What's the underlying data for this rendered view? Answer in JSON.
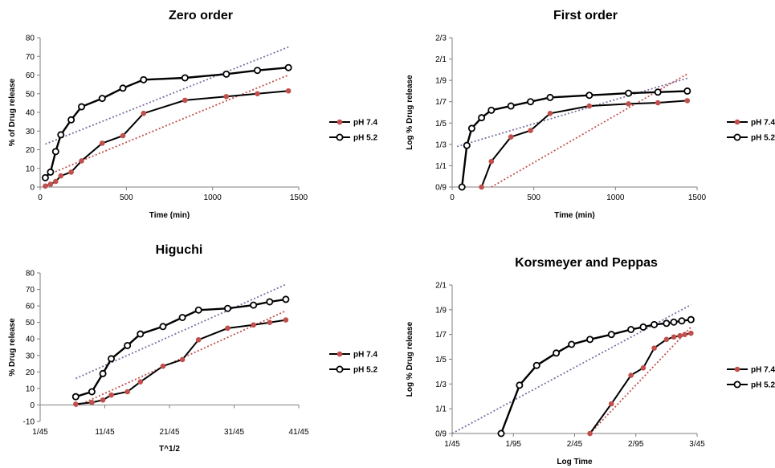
{
  "chart_data": [
    {
      "type": "line",
      "title": "Zero order",
      "xlabel": "Time (min)",
      "ylabel": "% of Drug release",
      "xticks": [
        "0",
        "500",
        "1000",
        "1500"
      ],
      "yticks": [
        "0",
        "10",
        "20",
        "30",
        "40",
        "50",
        "60",
        "70",
        "80"
      ],
      "xlim": [
        0,
        1500
      ],
      "ylim": [
        0,
        80
      ],
      "grid": false,
      "legend": "right",
      "series": [
        {
          "name": "pH 7.4",
          "color": "#c0504d",
          "x": [
            30,
            60,
            90,
            120,
            180,
            240,
            360,
            480,
            600,
            840,
            1080,
            1260,
            1440
          ],
          "y": [
            0.5,
            1.5,
            3,
            6,
            8,
            14,
            23.5,
            27.5,
            39.5,
            46.5,
            48.5,
            50,
            51.5
          ]
        },
        {
          "name": "pH 5.2",
          "color": "#000000",
          "x": [
            30,
            60,
            90,
            120,
            180,
            240,
            360,
            480,
            600,
            840,
            1080,
            1260,
            1440
          ],
          "y": [
            5,
            8,
            19,
            28,
            36,
            43,
            47.5,
            53,
            57.5,
            58.5,
            60.5,
            62.5,
            64
          ]
        }
      ],
      "trendlines": [
        {
          "color": "#c0504d",
          "x": [
            30,
            1440
          ],
          "y": [
            6,
            60
          ]
        },
        {
          "color": "#7f6f9f",
          "x": [
            30,
            1440
          ],
          "y": [
            23,
            75
          ]
        }
      ]
    },
    {
      "type": "line",
      "title": "First order",
      "xlabel": "Time (min)",
      "ylabel": "Log % Drug release",
      "xticks": [
        "0",
        "500",
        "1000",
        "1500"
      ],
      "yticks": [
        "0/9",
        "1/1",
        "1/3",
        "1/5",
        "1/7",
        "1/9",
        "2/1",
        "2/3"
      ],
      "xlim": [
        0,
        1500
      ],
      "ylim": [
        0,
        7
      ],
      "grid": false,
      "legend": "right",
      "series": [
        {
          "name": "pH 7.4",
          "color": "#c0504d",
          "x": [
            180,
            240,
            360,
            480,
            600,
            840,
            1080,
            1260,
            1440
          ],
          "y": [
            0,
            1.2,
            2.35,
            2.65,
            3.45,
            3.8,
            3.9,
            3.95,
            4.05
          ]
        },
        {
          "name": "pH 5.2",
          "color": "#000000",
          "x": [
            60,
            90,
            120,
            180,
            240,
            360,
            480,
            600,
            840,
            1080,
            1260,
            1440
          ],
          "y": [
            0,
            1.95,
            2.75,
            3.25,
            3.6,
            3.8,
            4.0,
            4.2,
            4.3,
            4.4,
            4.45,
            4.5
          ]
        }
      ],
      "trendlines": [
        {
          "color": "#c0504d",
          "x": [
            240,
            1440
          ],
          "y": [
            0,
            5.3
          ]
        },
        {
          "color": "#7f6f9f",
          "x": [
            30,
            1440
          ],
          "y": [
            1.9,
            5.1
          ]
        }
      ]
    },
    {
      "type": "line",
      "title": "Higuchi",
      "xlabel": "T^1/2",
      "ylabel": "% Drug release",
      "xticks": [
        "1/45",
        "11/45",
        "21/45",
        "31/45",
        "41/45"
      ],
      "yticks": [
        "-10",
        "0",
        "10",
        "20",
        "30",
        "40",
        "50",
        "60",
        "70",
        "80"
      ],
      "xlim": [
        0,
        4
      ],
      "ylim": [
        -10,
        80
      ],
      "grid": false,
      "legend": "right",
      "series": [
        {
          "name": "pH 7.4",
          "color": "#c0504d",
          "x": [
            0.55,
            0.8,
            0.97,
            1.1,
            1.35,
            1.55,
            1.9,
            2.2,
            2.45,
            2.9,
            3.3,
            3.55,
            3.8
          ],
          "y": [
            0.5,
            1.5,
            3,
            6,
            8,
            14,
            23.5,
            27.5,
            39.5,
            46.5,
            48.5,
            50,
            51.5
          ]
        },
        {
          "name": "pH 5.2",
          "color": "#000000",
          "x": [
            0.55,
            0.8,
            0.97,
            1.1,
            1.35,
            1.55,
            1.9,
            2.2,
            2.45,
            2.9,
            3.3,
            3.55,
            3.8
          ],
          "y": [
            5,
            8,
            19,
            28,
            36,
            43,
            47.5,
            53,
            57.5,
            58.5,
            60.5,
            62.5,
            64
          ]
        }
      ],
      "trendlines": [
        {
          "color": "#c0504d",
          "x": [
            0.55,
            3.8
          ],
          "y": [
            -1,
            57
          ]
        },
        {
          "color": "#7f6f9f",
          "x": [
            0.55,
            3.8
          ],
          "y": [
            16,
            73
          ]
        }
      ]
    },
    {
      "type": "line",
      "title": "Korsmeyer and Peppas",
      "xlabel": "Log Time",
      "ylabel": "Log % Drug release",
      "xticks": [
        "1/45",
        "1/95",
        "2/45",
        "2/95",
        "3/45"
      ],
      "yticks": [
        "0/9",
        "1/1",
        "1/3",
        "1/5",
        "1/7",
        "1/9",
        "2/1"
      ],
      "xlim": [
        0,
        4
      ],
      "ylim": [
        0,
        6
      ],
      "grid": false,
      "legend": "right",
      "series": [
        {
          "name": "pH 7.4",
          "color": "#c0504d",
          "x": [
            2.25,
            2.6,
            2.92,
            3.12,
            3.3,
            3.5,
            3.62,
            3.72,
            3.8,
            3.9
          ],
          "y": [
            0,
            1.2,
            2.35,
            2.65,
            3.45,
            3.8,
            3.9,
            3.95,
            4.0,
            4.05
          ]
        },
        {
          "name": "pH 5.2",
          "color": "#000000",
          "x": [
            0.8,
            1.1,
            1.38,
            1.7,
            1.95,
            2.25,
            2.6,
            2.92,
            3.12,
            3.3,
            3.5,
            3.62,
            3.75,
            3.9
          ],
          "y": [
            0,
            1.95,
            2.75,
            3.25,
            3.6,
            3.8,
            4.0,
            4.2,
            4.3,
            4.4,
            4.45,
            4.5,
            4.55,
            4.6
          ]
        }
      ],
      "trendlines": [
        {
          "color": "#c0504d",
          "x": [
            2.25,
            3.9
          ],
          "y": [
            0,
            4.3
          ]
        },
        {
          "color": "#7f6f9f",
          "x": [
            0,
            3.9
          ],
          "y": [
            0,
            5.2
          ]
        }
      ]
    }
  ]
}
